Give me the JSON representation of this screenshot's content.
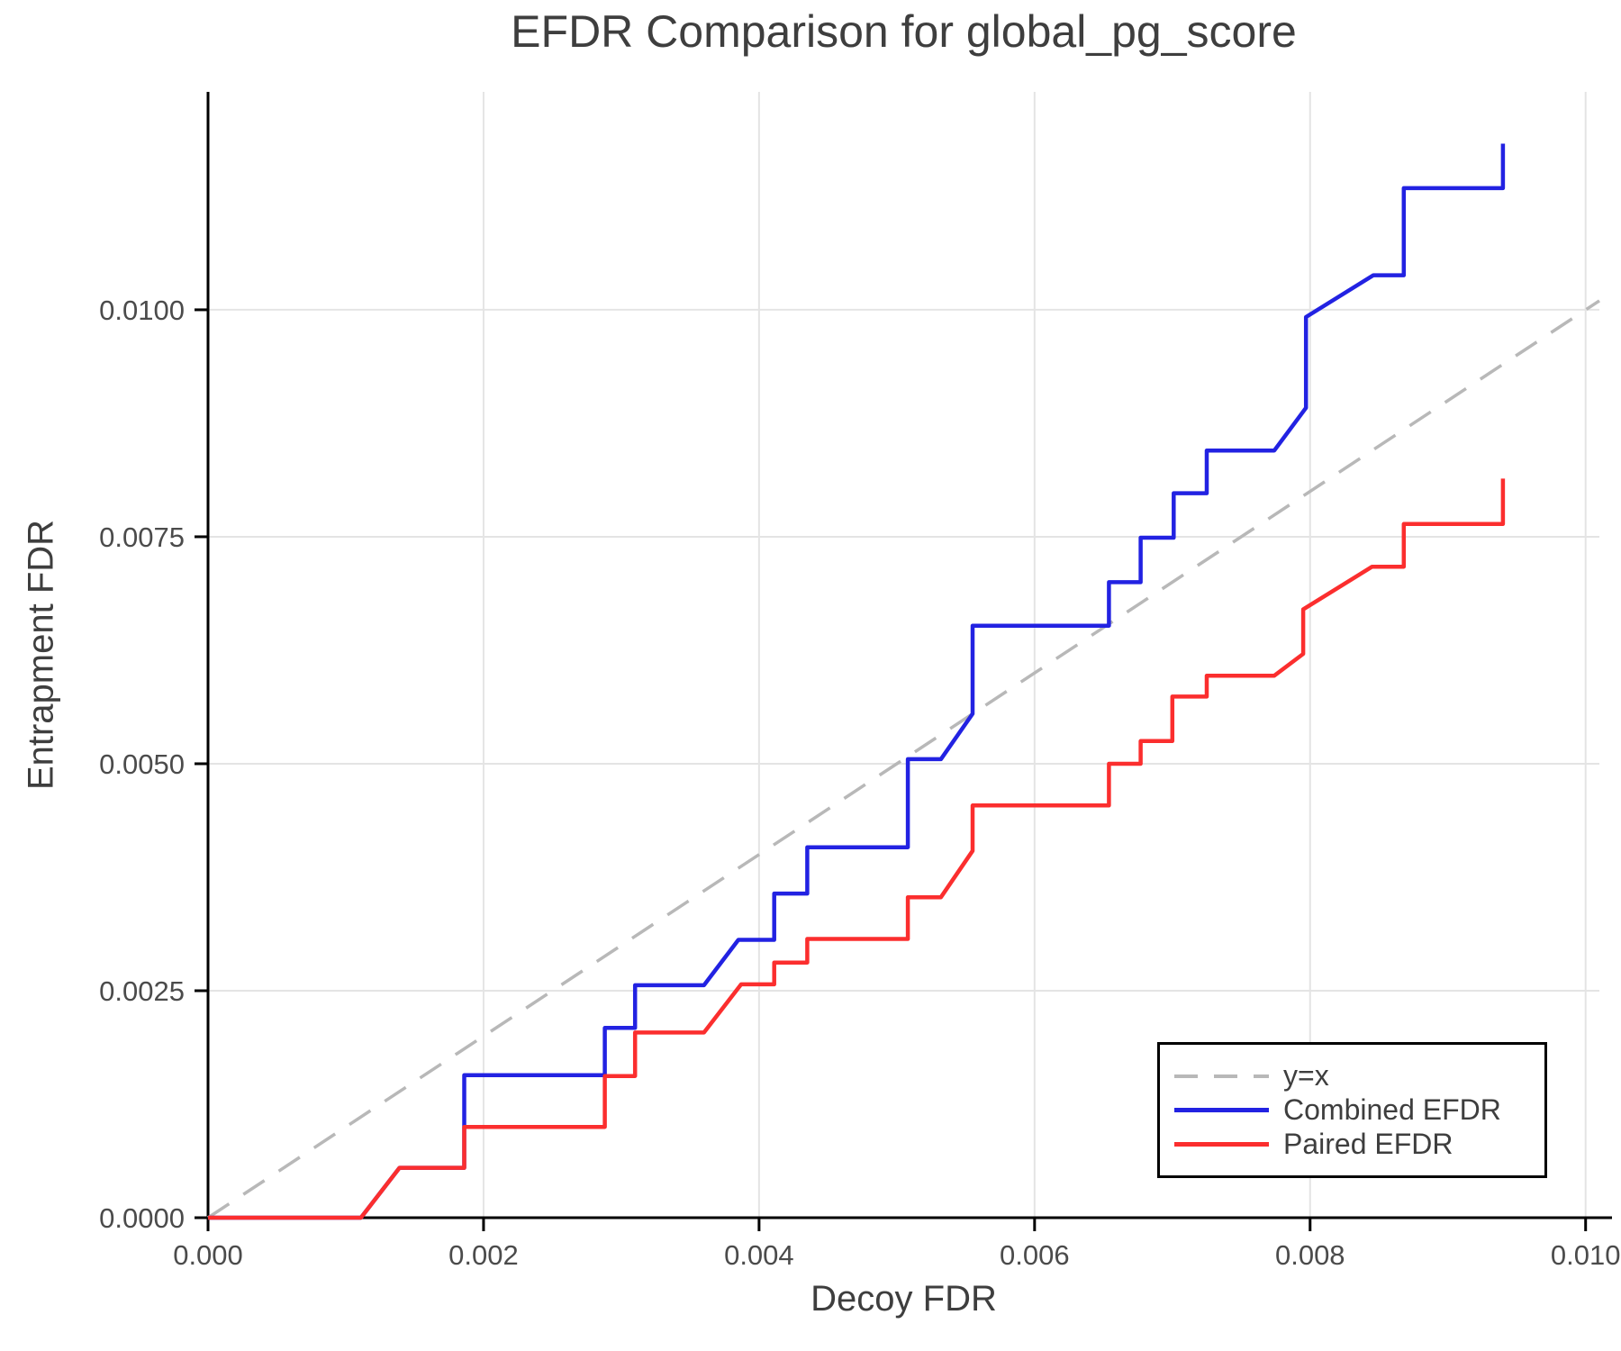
{
  "title": "EFDR Comparison for global_pg_score",
  "chart_data": {
    "type": "line",
    "title": "EFDR Comparison for global_pg_score",
    "xlabel": "Decoy FDR",
    "ylabel": "Entrapment FDR",
    "xlim": [
      0,
      0.0101
    ],
    "ylim": [
      0,
      0.0124
    ],
    "grid": true,
    "legend_position": "bottom-right",
    "x_ticks": {
      "values": [
        0,
        0.002,
        0.004,
        0.006,
        0.008,
        0.01
      ],
      "labels": [
        "0.000",
        "0.002",
        "0.004",
        "0.006",
        "0.008",
        "0.010"
      ]
    },
    "y_ticks": {
      "values": [
        0,
        0.0025,
        0.005,
        0.0075,
        0.01
      ],
      "labels": [
        "0.0000",
        "0.0025",
        "0.0050",
        "0.0075",
        "0.0100"
      ]
    },
    "series": [
      {
        "name": "y=x",
        "color": "#b8b8b8",
        "dash": true,
        "width": 3.5,
        "points": [
          [
            0,
            0
          ],
          [
            0.0101,
            0.0101
          ]
        ]
      },
      {
        "name": "Combined EFDR",
        "color": "#2222e2",
        "dash": false,
        "width": 4.5,
        "points": [
          [
            0,
            0
          ],
          [
            0.00111,
            0
          ],
          [
            0.00139,
            0.00055
          ],
          [
            0.00186,
            0.00055
          ],
          [
            0.00186,
            0.00157
          ],
          [
            0.00288,
            0.00157
          ],
          [
            0.00288,
            0.00209
          ],
          [
            0.0031,
            0.00209
          ],
          [
            0.0031,
            0.00256
          ],
          [
            0.0036,
            0.00256
          ],
          [
            0.00385,
            0.00306
          ],
          [
            0.00411,
            0.00306
          ],
          [
            0.00411,
            0.00357
          ],
          [
            0.00435,
            0.00357
          ],
          [
            0.00435,
            0.00408
          ],
          [
            0.00508,
            0.00408
          ],
          [
            0.00508,
            0.00505
          ],
          [
            0.00532,
            0.00505
          ],
          [
            0.00555,
            0.00555
          ],
          [
            0.00555,
            0.00652
          ],
          [
            0.00654,
            0.00652
          ],
          [
            0.00654,
            0.007
          ],
          [
            0.00677,
            0.007
          ],
          [
            0.00677,
            0.00749
          ],
          [
            0.00701,
            0.00749
          ],
          [
            0.00701,
            0.00798
          ],
          [
            0.00725,
            0.00798
          ],
          [
            0.00725,
            0.00845
          ],
          [
            0.00774,
            0.00845
          ],
          [
            0.00797,
            0.00892
          ],
          [
            0.00797,
            0.00992
          ],
          [
            0.00846,
            0.01038
          ],
          [
            0.00868,
            0.01038
          ],
          [
            0.00868,
            0.01134
          ],
          [
            0.0094,
            0.01134
          ],
          [
            0.0094,
            0.01183
          ]
        ]
      },
      {
        "name": "Paired EFDR",
        "color": "#fb2e2e",
        "dash": false,
        "width": 4.5,
        "points": [
          [
            0,
            0
          ],
          [
            0.00111,
            0
          ],
          [
            0.00139,
            0.00055
          ],
          [
            0.00186,
            0.00055
          ],
          [
            0.00186,
            0.001
          ],
          [
            0.00288,
            0.001
          ],
          [
            0.00288,
            0.00156
          ],
          [
            0.0031,
            0.00156
          ],
          [
            0.0031,
            0.00204
          ],
          [
            0.0036,
            0.00204
          ],
          [
            0.00387,
            0.00257
          ],
          [
            0.00411,
            0.00257
          ],
          [
            0.00411,
            0.00281
          ],
          [
            0.00435,
            0.00281
          ],
          [
            0.00435,
            0.00307
          ],
          [
            0.00508,
            0.00307
          ],
          [
            0.00508,
            0.00353
          ],
          [
            0.00532,
            0.00353
          ],
          [
            0.00555,
            0.00404
          ],
          [
            0.00555,
            0.00454
          ],
          [
            0.00654,
            0.00454
          ],
          [
            0.00654,
            0.005
          ],
          [
            0.00677,
            0.005
          ],
          [
            0.00677,
            0.00525
          ],
          [
            0.007,
            0.00525
          ],
          [
            0.007,
            0.00574
          ],
          [
            0.00725,
            0.00574
          ],
          [
            0.00725,
            0.00597
          ],
          [
            0.00774,
            0.00597
          ],
          [
            0.00795,
            0.00621
          ],
          [
            0.00795,
            0.0067
          ],
          [
            0.00845,
            0.00717
          ],
          [
            0.00868,
            0.00717
          ],
          [
            0.00868,
            0.00764
          ],
          [
            0.0094,
            0.00764
          ],
          [
            0.0094,
            0.00814
          ]
        ]
      }
    ],
    "colors": {
      "axis": "#000000",
      "grid": "#e4e4e4",
      "tick_label": "#4b4b4b",
      "text": "#3e3e3e",
      "background": "#ffffff"
    }
  }
}
